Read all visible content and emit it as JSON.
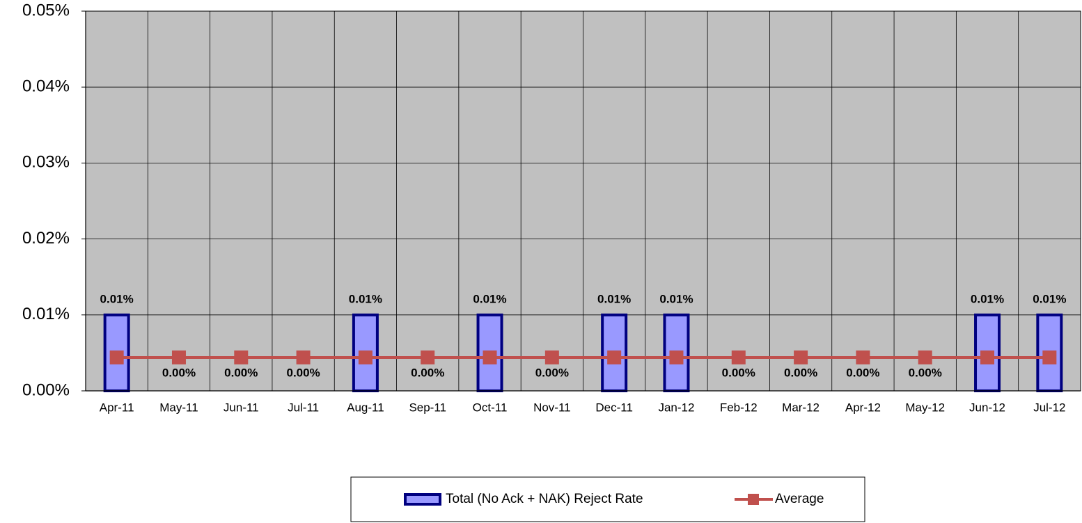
{
  "chart_data": {
    "type": "bar",
    "categories": [
      "Apr-11",
      "May-11",
      "Jun-11",
      "Jul-11",
      "Aug-11",
      "Sep-11",
      "Oct-11",
      "Nov-11",
      "Dec-11",
      "Jan-12",
      "Feb-12",
      "Mar-12",
      "Apr-12",
      "May-12",
      "Jun-12",
      "Jul-12"
    ],
    "series": [
      {
        "name": "Total (No Ack + NAK) Reject Rate",
        "type": "bar",
        "color": "#9999ff",
        "edge": "#000080",
        "values": [
          0.01,
          0,
          0,
          0,
          0.01,
          0,
          0.01,
          0,
          0.01,
          0.01,
          0,
          0,
          0,
          0,
          0.01,
          0.01
        ],
        "value_labels": [
          "0.01%",
          "0.00%",
          "0.00%",
          "0.00%",
          "0.01%",
          "0.00%",
          "0.01%",
          "0.00%",
          "0.01%",
          "0.01%",
          "0.00%",
          "0.00%",
          "0.00%",
          "0.00%",
          "0.01%",
          "0.01%"
        ]
      },
      {
        "name": "Average",
        "type": "line",
        "color": "#c0504d",
        "values": [
          0.0044,
          0.0044,
          0.0044,
          0.0044,
          0.0044,
          0.0044,
          0.0044,
          0.0044,
          0.0044,
          0.0044,
          0.0044,
          0.0044,
          0.0044,
          0.0044,
          0.0044,
          0.0044
        ]
      }
    ],
    "ylim": [
      0,
      0.05
    ],
    "yticks": [
      {
        "value": 0,
        "label": "0.00%"
      },
      {
        "value": 0.01,
        "label": "0.01%"
      },
      {
        "value": 0.02,
        "label": "0.02%"
      },
      {
        "value": 0.03,
        "label": "0.03%"
      },
      {
        "value": 0.04,
        "label": "0.04%"
      },
      {
        "value": 0.05,
        "label": "0.05%"
      }
    ],
    "grid": true,
    "plot_background": "#c0c0c0",
    "legend": "bottom"
  }
}
